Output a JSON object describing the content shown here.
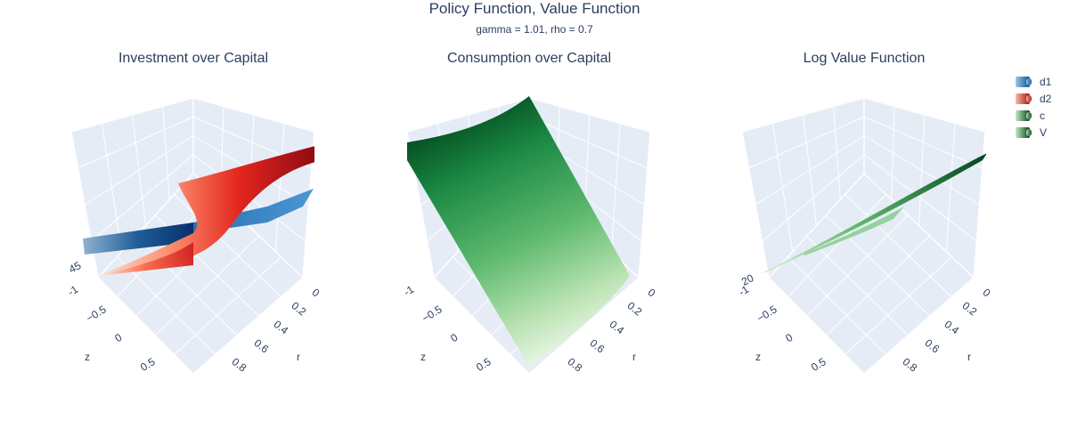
{
  "title": "Policy Function, Value Function",
  "subtitle": "gamma = 1.01, rho = 0.7",
  "legend": [
    {
      "name": "d1",
      "color_light": "#9ecae1",
      "color_dark": "#08519c"
    },
    {
      "name": "d2",
      "color_light": "#fcbba1",
      "color_dark": "#a50f15"
    },
    {
      "name": "c",
      "color_light": "#c7e9c0",
      "color_dark": "#00441b"
    },
    {
      "name": "V",
      "color_light": "#c7e9c0",
      "color_dark": "#00441b"
    }
  ],
  "chart_data": [
    {
      "type": "surface",
      "title": "Investment over Capital",
      "xaxis": {
        "label": "r",
        "ticks": [
          "0",
          "0.2",
          "0.4",
          "0.6",
          "0.8"
        ]
      },
      "yaxis": {
        "label": "z",
        "ticks": [
          "-1",
          "−0.5",
          "0",
          "0.5"
        ]
      },
      "zaxis": {
        "label": "",
        "ticks": [
          "45"
        ]
      },
      "series": [
        {
          "name": "d1",
          "colorscale": "Blues"
        },
        {
          "name": "d2",
          "colorscale": "Reds"
        }
      ]
    },
    {
      "type": "surface",
      "title": "Consumption over Capital",
      "xaxis": {
        "label": "r",
        "ticks": [
          "0",
          "0.2",
          "0.4",
          "0.6",
          "0.8"
        ]
      },
      "yaxis": {
        "label": "z",
        "ticks": [
          "-1",
          "−0.5",
          "0",
          "0.5"
        ]
      },
      "zaxis": {
        "label": "",
        "ticks": []
      },
      "series": [
        {
          "name": "c",
          "colorscale": "Greens"
        }
      ]
    },
    {
      "type": "surface",
      "title": "Log Value Function",
      "xaxis": {
        "label": "r",
        "ticks": [
          "0",
          "0.2",
          "0.4",
          "0.6",
          "0.8"
        ]
      },
      "yaxis": {
        "label": "z",
        "ticks": [
          "-1",
          "−0.5",
          "0",
          "0.5"
        ]
      },
      "zaxis": {
        "label": "",
        "ticks": [
          "20"
        ]
      },
      "series": [
        {
          "name": "V",
          "colorscale": "Greens"
        }
      ]
    }
  ]
}
